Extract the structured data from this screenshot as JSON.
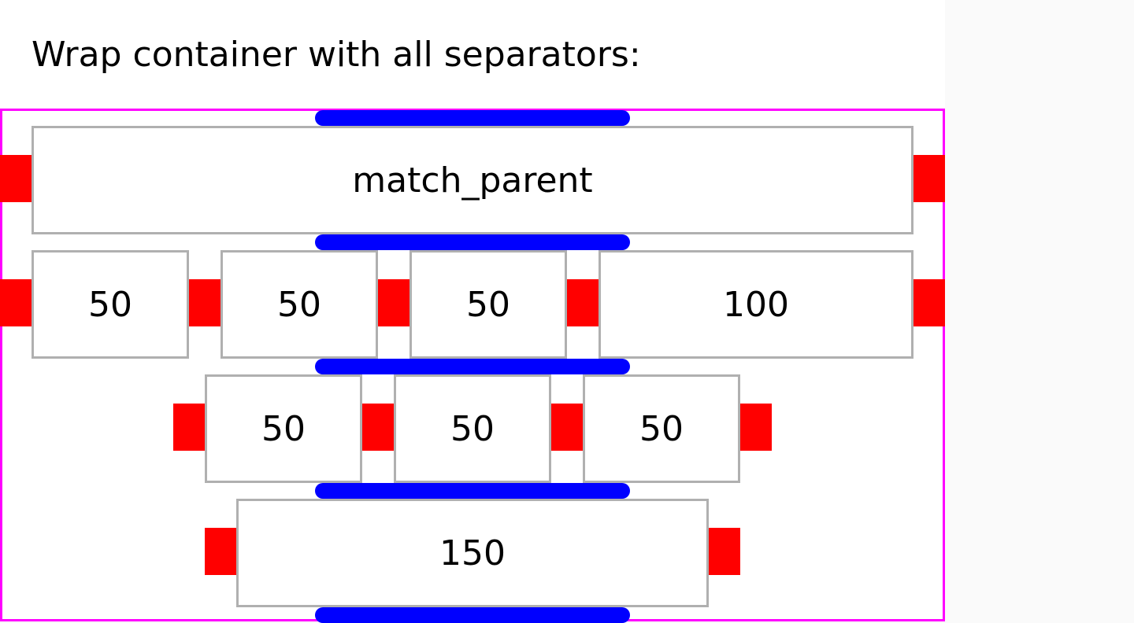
{
  "title": "Wrap container with all separators:",
  "colors": {
    "container_border": "#ff00ff",
    "item_separator": "#ff0000",
    "line_separator": "#0000ff",
    "item_border": "#b0b0b0"
  },
  "rows": [
    {
      "items": [
        "match_parent"
      ]
    },
    {
      "items": [
        "50",
        "50",
        "50",
        "100"
      ]
    },
    {
      "items": [
        "50",
        "50",
        "50"
      ]
    },
    {
      "items": [
        "150"
      ]
    }
  ]
}
